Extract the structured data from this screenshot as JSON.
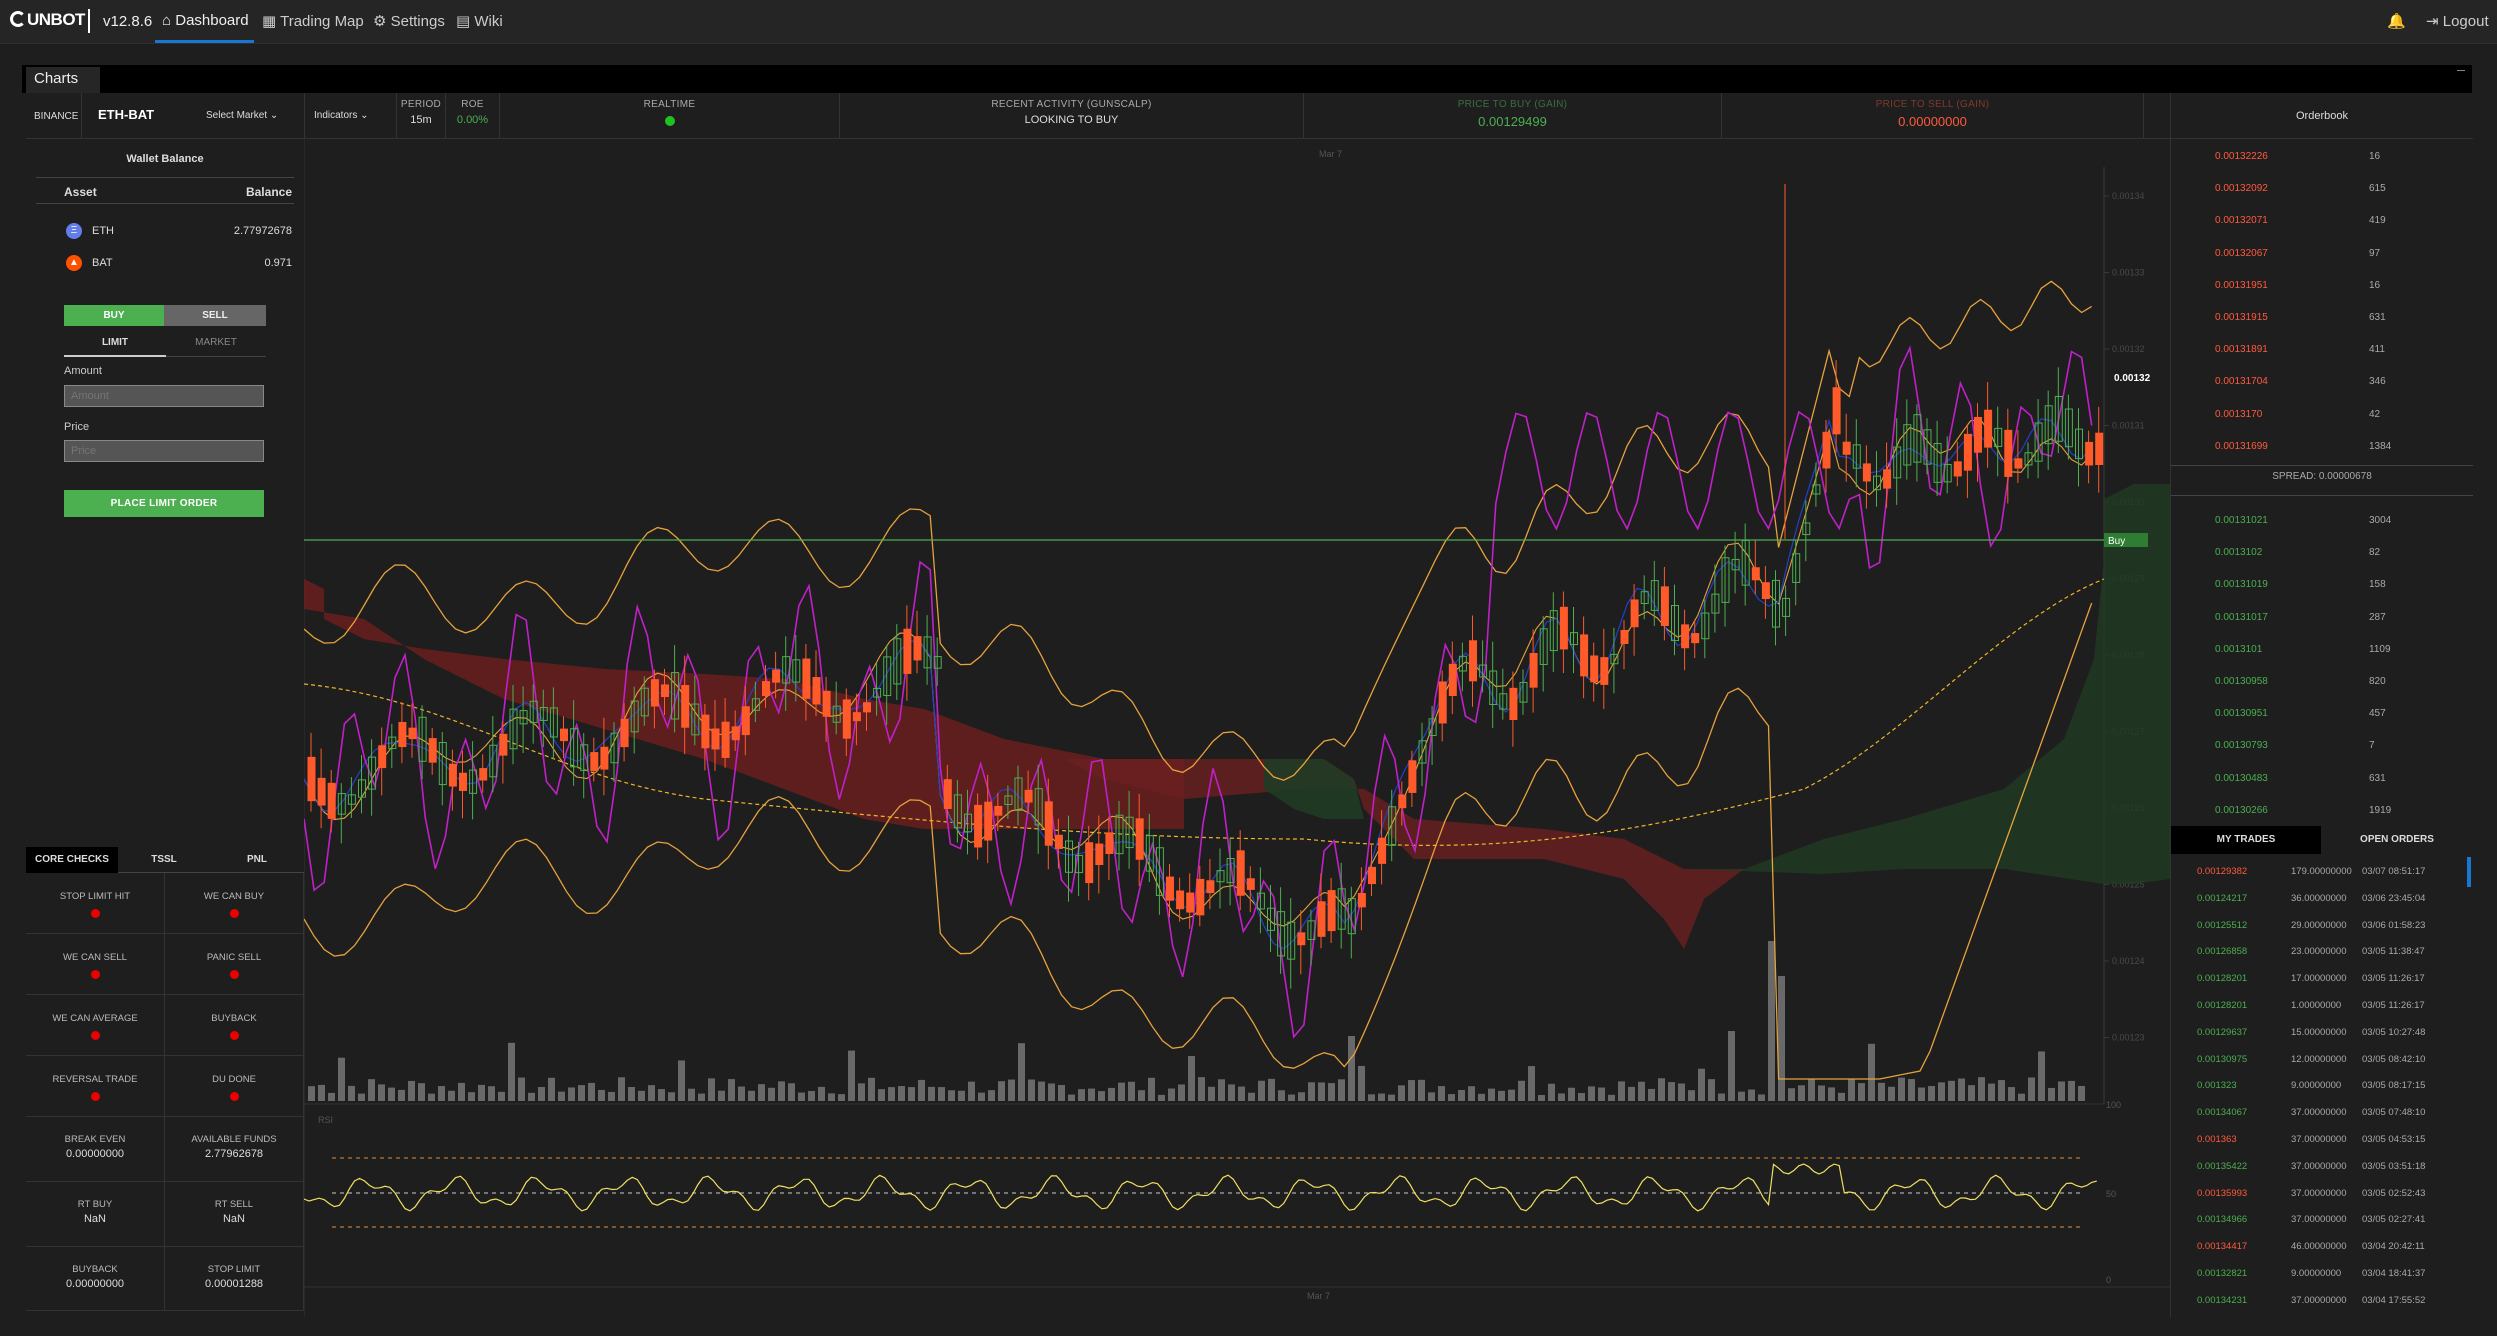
{
  "app": {
    "logo": "UNBOT",
    "version": "v12.8.6",
    "nav": [
      {
        "label": "Dashboard",
        "icon": "home-icon"
      },
      {
        "label": "Trading Map",
        "icon": "grid-icon"
      },
      {
        "label": "Settings",
        "icon": "gear-icon"
      },
      {
        "label": "Wiki",
        "icon": "book-icon"
      }
    ],
    "logout": "Logout",
    "bell_icon": "bell-icon"
  },
  "window": {
    "title": "Charts"
  },
  "header": {
    "exchange": "BINANCE",
    "pair": "ETH-BAT",
    "select_market": "Select Market",
    "indicators": "Indicators",
    "period_label": "PERIOD",
    "period_value": "15m",
    "roe_label": "ROE",
    "roe_value": "0.00%",
    "realtime_label": "REALTIME",
    "activity_label": "RECENT ACTIVITY (GUNSCALP)",
    "activity_value": "LOOKING TO BUY",
    "price_buy_label": "PRICE TO BUY (GAIN)",
    "price_buy_value": "0.00129499",
    "price_sell_label": "PRICE TO SELL (GAIN)",
    "price_sell_value": "0.00000000"
  },
  "wallet": {
    "title": "Wallet Balance",
    "col_asset": "Asset",
    "col_balance": "Balance",
    "rows": [
      {
        "asset": "ETH",
        "balance": "2.77972678",
        "icon": "eth-icon"
      },
      {
        "asset": "BAT",
        "balance": "0.971",
        "icon": "bat-icon"
      }
    ]
  },
  "order_form": {
    "buy": "BUY",
    "sell": "SELL",
    "limit": "LIMIT",
    "market": "MARKET",
    "amount_label": "Amount",
    "amount_placeholder": "Amount",
    "price_label": "Price",
    "price_placeholder": "Price",
    "place": "PLACE LIMIT ORDER"
  },
  "checks": {
    "tabs": [
      "CORE CHECKS",
      "TSSL",
      "PNL"
    ],
    "flags": [
      "STOP LIMIT HIT",
      "WE CAN BUY",
      "WE CAN SELL",
      "PANIC SELL",
      "WE CAN AVERAGE",
      "BUYBACK",
      "REVERSAL TRADE",
      "DU DONE"
    ],
    "values": [
      {
        "label": "BREAK EVEN",
        "value": "0.00000000"
      },
      {
        "label": "AVAILABLE FUNDS",
        "value": "2.77962678"
      },
      {
        "label": "RT BUY",
        "value": "NaN"
      },
      {
        "label": "RT SELL",
        "value": "NaN"
      },
      {
        "label": "BUYBACK",
        "value": "0.00000000"
      },
      {
        "label": "STOP LIMIT",
        "value": "0.00001288"
      }
    ]
  },
  "chart": {
    "date_label_top": "Mar 7",
    "date_label_bottom": "Mar 7",
    "current_price": "0.00132",
    "buy_tag": "Buy",
    "rsi_label": "RSI",
    "price_ticks": [
      "0.00134",
      "0.00133",
      "0.00132",
      "0.00131",
      "0.00130",
      "0.00129",
      "0.00128",
      "0.00127",
      "0.00126",
      "0.00125",
      "0.00124",
      "0.00123"
    ],
    "vol_tick": "100",
    "rsi_ticks": [
      "50",
      "0"
    ],
    "colors": {
      "up": "#4caf50",
      "down": "#ff5a2a",
      "boll": "#e6a23c",
      "ema": "#2340c8",
      "osc": "#c020c8",
      "cloud_red": "#6b1f1f",
      "cloud_green": "#1f3b23"
    }
  },
  "orderbook": {
    "title": "Orderbook",
    "asks": [
      {
        "price": "0.00132226",
        "qty": "16"
      },
      {
        "price": "0.00132092",
        "qty": "615"
      },
      {
        "price": "0.00132071",
        "qty": "419"
      },
      {
        "price": "0.00132067",
        "qty": "97"
      },
      {
        "price": "0.00131951",
        "qty": "16"
      },
      {
        "price": "0.00131915",
        "qty": "631"
      },
      {
        "price": "0.00131891",
        "qty": "411"
      },
      {
        "price": "0.00131704",
        "qty": "346"
      },
      {
        "price": "0.0013170",
        "qty": "42"
      },
      {
        "price": "0.00131699",
        "qty": "1384"
      }
    ],
    "spread_label": "SPREAD:",
    "spread_value": "0.00000678",
    "bids": [
      {
        "price": "0.00131021",
        "qty": "3004"
      },
      {
        "price": "0.0013102",
        "qty": "82"
      },
      {
        "price": "0.00131019",
        "qty": "158"
      },
      {
        "price": "0.00131017",
        "qty": "287"
      },
      {
        "price": "0.0013101",
        "qty": "1109"
      },
      {
        "price": "0.00130958",
        "qty": "820"
      },
      {
        "price": "0.00130951",
        "qty": "457"
      },
      {
        "price": "0.00130793",
        "qty": "7"
      },
      {
        "price": "0.00130483",
        "qty": "631"
      },
      {
        "price": "0.00130266",
        "qty": "1919"
      }
    ]
  },
  "trades": {
    "tabs": [
      "MY TRADES",
      "OPEN ORDERS"
    ],
    "rows": [
      {
        "price": "0.00129382",
        "amount": "179.00000000",
        "date": "03/07 08:51:17",
        "side": "sell"
      },
      {
        "price": "0.00124217",
        "amount": "36.00000000",
        "date": "03/06 23:45:04",
        "side": "buy"
      },
      {
        "price": "0.00125512",
        "amount": "29.00000000",
        "date": "03/06 01:58:23",
        "side": "buy"
      },
      {
        "price": "0.00126858",
        "amount": "23.00000000",
        "date": "03/05 11:38:47",
        "side": "buy"
      },
      {
        "price": "0.00128201",
        "amount": "17.00000000",
        "date": "03/05 11:26:17",
        "side": "buy"
      },
      {
        "price": "0.00128201",
        "amount": "1.00000000",
        "date": "03/05 11:26:17",
        "side": "buy"
      },
      {
        "price": "0.00129637",
        "amount": "15.00000000",
        "date": "03/05 10:27:48",
        "side": "buy"
      },
      {
        "price": "0.00130975",
        "amount": "12.00000000",
        "date": "03/05 08:42:10",
        "side": "buy"
      },
      {
        "price": "0.001323",
        "amount": "9.00000000",
        "date": "03/05 08:17:15",
        "side": "buy"
      },
      {
        "price": "0.00134067",
        "amount": "37.00000000",
        "date": "03/05 07:48:10",
        "side": "buy"
      },
      {
        "price": "0.001363",
        "amount": "37.00000000",
        "date": "03/05 04:53:15",
        "side": "sell"
      },
      {
        "price": "0.00135422",
        "amount": "37.00000000",
        "date": "03/05 03:51:18",
        "side": "buy"
      },
      {
        "price": "0.00135993",
        "amount": "37.00000000",
        "date": "03/05 02:52:43",
        "side": "sell"
      },
      {
        "price": "0.00134966",
        "amount": "37.00000000",
        "date": "03/05 02:27:41",
        "side": "buy"
      },
      {
        "price": "0.00134417",
        "amount": "46.00000000",
        "date": "03/04 20:42:11",
        "side": "sell"
      },
      {
        "price": "0.00132821",
        "amount": "9.00000000",
        "date": "03/04 18:41:37",
        "side": "buy"
      },
      {
        "price": "0.00134231",
        "amount": "37.00000000",
        "date": "03/04 17:55:52",
        "side": "buy"
      }
    ]
  }
}
